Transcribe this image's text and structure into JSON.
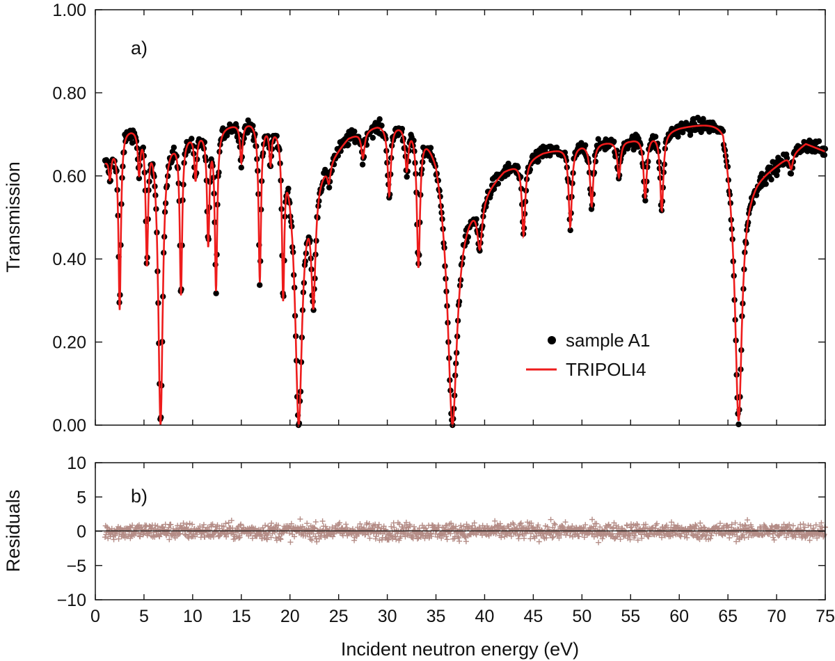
{
  "chart_data": [
    {
      "type": "scatter",
      "panel_label": "a)",
      "ylabel": "Transmission",
      "xlim": [
        0,
        75
      ],
      "ylim": [
        0.0,
        1.0
      ],
      "yticks": [
        "0.00",
        "0.20",
        "0.40",
        "0.60",
        "0.80",
        "1.00"
      ],
      "legend": {
        "placement": "lower-right",
        "entries": [
          "sample A1",
          "TRIPOLI4"
        ]
      },
      "continuum": [
        [
          1.0,
          0.64
        ],
        [
          3.0,
          0.72
        ],
        [
          5.0,
          0.73
        ],
        [
          8.0,
          0.7
        ],
        [
          12.0,
          0.72
        ],
        [
          16.0,
          0.74
        ],
        [
          19.0,
          0.74
        ],
        [
          21.0,
          0.55
        ],
        [
          23.0,
          0.62
        ],
        [
          26.0,
          0.7
        ],
        [
          29.0,
          0.73
        ],
        [
          33.0,
          0.74
        ],
        [
          35.0,
          0.69
        ],
        [
          37.0,
          0.5
        ],
        [
          39.0,
          0.55
        ],
        [
          42.0,
          0.62
        ],
        [
          46.0,
          0.66
        ],
        [
          50.0,
          0.68
        ],
        [
          55.0,
          0.69
        ],
        [
          60.0,
          0.72
        ],
        [
          64.5,
          0.74
        ],
        [
          66.0,
          0.55
        ],
        [
          68.0,
          0.6
        ],
        [
          70.0,
          0.63
        ],
        [
          73.0,
          0.68
        ],
        [
          75.0,
          0.66
        ]
      ],
      "dips": [
        {
          "energy": 1.5,
          "min": 0.6,
          "width": 0.15
        },
        {
          "energy": 2.5,
          "min": 0.28,
          "width": 0.15
        },
        {
          "energy": 4.5,
          "min": 0.62,
          "width": 0.15
        },
        {
          "energy": 5.3,
          "min": 0.4,
          "width": 0.15
        },
        {
          "energy": 6.7,
          "min": 0.0,
          "width": 0.28
        },
        {
          "energy": 8.8,
          "min": 0.32,
          "width": 0.15
        },
        {
          "energy": 10.3,
          "min": 0.6,
          "width": 0.15
        },
        {
          "energy": 11.6,
          "min": 0.44,
          "width": 0.15
        },
        {
          "energy": 12.4,
          "min": 0.33,
          "width": 0.15
        },
        {
          "energy": 15.0,
          "min": 0.64,
          "width": 0.15
        },
        {
          "energy": 16.9,
          "min": 0.35,
          "width": 0.15
        },
        {
          "energy": 18.0,
          "min": 0.65,
          "width": 0.15
        },
        {
          "energy": 19.3,
          "min": 0.32,
          "width": 0.15
        },
        {
          "energy": 20.9,
          "min": 0.0,
          "width": 0.4
        },
        {
          "energy": 22.4,
          "min": 0.3,
          "width": 0.25
        },
        {
          "energy": 24.0,
          "min": 0.6,
          "width": 0.2
        },
        {
          "energy": 27.5,
          "min": 0.65,
          "width": 0.2
        },
        {
          "energy": 30.2,
          "min": 0.56,
          "width": 0.2
        },
        {
          "energy": 32.0,
          "min": 0.63,
          "width": 0.2
        },
        {
          "energy": 33.2,
          "min": 0.39,
          "width": 0.2
        },
        {
          "energy": 36.7,
          "min": 0.0,
          "width": 0.55
        },
        {
          "energy": 39.5,
          "min": 0.44,
          "width": 0.3
        },
        {
          "energy": 44.0,
          "min": 0.46,
          "width": 0.2
        },
        {
          "energy": 48.8,
          "min": 0.48,
          "width": 0.2
        },
        {
          "energy": 51.0,
          "min": 0.53,
          "width": 0.2
        },
        {
          "energy": 53.8,
          "min": 0.6,
          "width": 0.2
        },
        {
          "energy": 56.5,
          "min": 0.55,
          "width": 0.2
        },
        {
          "energy": 58.2,
          "min": 0.52,
          "width": 0.2
        },
        {
          "energy": 66.1,
          "min": 0.01,
          "width": 0.4
        },
        {
          "energy": 71.5,
          "min": 0.62,
          "width": 0.2
        }
      ],
      "series": [
        {
          "name": "sample A1",
          "color": "#000000",
          "marker": "filled-circle"
        },
        {
          "name": "TRIPOLI4",
          "color": "#ee1c1c",
          "marker": "line"
        }
      ]
    },
    {
      "type": "scatter",
      "panel_label": "b)",
      "ylabel": "Residuals",
      "xlabel": "Incident neutron energy (eV)",
      "xlim": [
        0,
        75
      ],
      "ylim": [
        -10,
        10
      ],
      "xticks": [
        "0",
        "5",
        "10",
        "15",
        "20",
        "25",
        "30",
        "35",
        "40",
        "45",
        "50",
        "55",
        "60",
        "65",
        "70",
        "75"
      ],
      "yticks": [
        "−10",
        "−5",
        "0",
        "5",
        "10"
      ],
      "residual_spread": 1.2,
      "series": [
        {
          "name": "residuals",
          "color": "#b48c86",
          "marker": "plus"
        }
      ]
    }
  ]
}
